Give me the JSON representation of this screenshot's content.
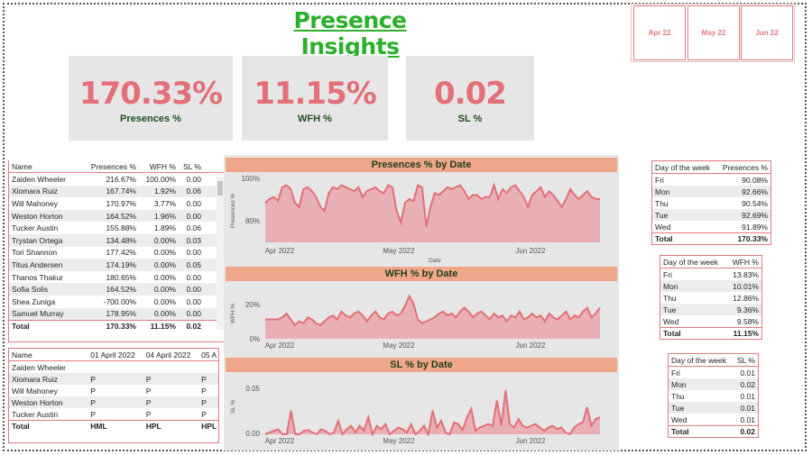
{
  "header": {
    "title": "Presence Insights"
  },
  "slicers": [
    {
      "label": "Apr 22"
    },
    {
      "label": "May 22"
    },
    {
      "label": "Jun 22"
    }
  ],
  "kpis": [
    {
      "value": "170.33%",
      "label": "Presences %"
    },
    {
      "value": "11.15%",
      "label": "WFH %"
    },
    {
      "value": "0.02",
      "label": "SL %"
    }
  ],
  "employee_table": {
    "columns": [
      "Name",
      "Presences %",
      "WFH %",
      "SL %"
    ],
    "rows": [
      [
        "Zaiden Wheeler",
        "216.67%",
        "100.00%",
        "0.00"
      ],
      [
        "Xiomara Ruiz",
        "167.74%",
        "1.92%",
        "0.06"
      ],
      [
        "Will Mahoney",
        "170.97%",
        "3.77%",
        "0.00"
      ],
      [
        "Weston Horton",
        "164.52%",
        "1.96%",
        "0.00"
      ],
      [
        "Tucker Austin",
        "155.88%",
        "1.89%",
        "0.06"
      ],
      [
        "Trystan Ortega",
        "134.48%",
        "0.00%",
        "0.03"
      ],
      [
        "Tori Shannon",
        "177.42%",
        "0.00%",
        "0.00"
      ],
      [
        "Titus Andersen",
        "174.19%",
        "0.00%",
        "0.05"
      ],
      [
        "Thanos Thakur",
        "180.65%",
        "0.00%",
        "0.00"
      ],
      [
        "Sofia Solis",
        "164.52%",
        "0.00%",
        "0.00"
      ],
      [
        "Shea Zuniga",
        "-700.00%",
        "0.00%",
        "0.00"
      ],
      [
        "Samuel Murray",
        "178.95%",
        "0.00%",
        "0.00"
      ]
    ],
    "total": [
      "Total",
      "170.33%",
      "11.15%",
      "0.02"
    ]
  },
  "attendance_table": {
    "columns": [
      "Name",
      "01 April 2022",
      "04 April 2022",
      "05 A"
    ],
    "rows": [
      [
        "Zaiden Wheeler",
        "",
        "",
        ""
      ],
      [
        "Xiomara Ruiz",
        "P",
        "P",
        "P"
      ],
      [
        "Will Mahoney",
        "P",
        "P",
        "P"
      ],
      [
        "Weston Horton",
        "P",
        "P",
        "P"
      ],
      [
        "Tucker Austin",
        "P",
        "P",
        "P"
      ]
    ],
    "total": [
      "Total",
      "HML",
      "HPL",
      "HPL"
    ]
  },
  "dow_presences": {
    "columns": [
      "Day of the week",
      "Presences %"
    ],
    "rows": [
      [
        "Fri",
        "90.08%"
      ],
      [
        "Mon",
        "92.66%"
      ],
      [
        "Thu",
        "90.54%"
      ],
      [
        "Tue",
        "92.69%"
      ],
      [
        "Wed",
        "91.89%"
      ]
    ],
    "total": [
      "Total",
      "170.33%"
    ]
  },
  "dow_wfh": {
    "columns": [
      "Day of the week",
      "WFH %"
    ],
    "rows": [
      [
        "Fri",
        "13.83%"
      ],
      [
        "Mon",
        "10.01%"
      ],
      [
        "Thu",
        "12.86%"
      ],
      [
        "Tue",
        "9.36%"
      ],
      [
        "Wed",
        "9.58%"
      ]
    ],
    "total": [
      "Total",
      "11.15%"
    ]
  },
  "dow_sl": {
    "columns": [
      "Day of the week",
      "SL %"
    ],
    "rows": [
      [
        "Fri",
        "0.01"
      ],
      [
        "Mon",
        "0.02"
      ],
      [
        "Thu",
        "0.01"
      ],
      [
        "Tue",
        "0.01"
      ],
      [
        "Wed",
        "0.01"
      ]
    ],
    "total": [
      "Total",
      "0.02"
    ]
  },
  "colors": {
    "accent": "#e46f78",
    "title_green": "#2ab02a",
    "chart_header": "#f0a688",
    "area_fill": "#e8a6aa"
  },
  "chart_data": [
    {
      "type": "area",
      "title": "Presences % by Date",
      "xlabel": "Date",
      "ylabel": "Presences %",
      "x_ticks": [
        "Apr 2022",
        "May 2022",
        "Jun 2022"
      ],
      "y_ticks": [
        "100%",
        "80%"
      ],
      "ylim": [
        70,
        102
      ],
      "values": [
        90,
        92,
        93,
        91,
        98,
        99,
        97,
        90,
        88,
        97,
        98,
        96,
        93,
        88,
        86,
        95,
        98,
        97,
        99,
        98,
        97,
        96,
        98,
        93,
        96,
        97,
        98,
        96,
        95,
        99,
        98,
        86,
        80,
        90,
        92,
        91,
        99,
        98,
        78,
        88,
        95,
        94,
        96,
        98,
        97,
        98,
        99,
        96,
        92,
        94,
        94,
        92,
        93,
        93,
        99,
        92,
        97,
        95,
        98,
        99,
        96,
        93,
        88,
        94,
        96,
        98,
        93,
        96,
        94,
        91,
        88,
        92,
        97,
        94,
        92,
        94,
        96,
        93,
        92,
        92
      ]
    },
    {
      "type": "area",
      "title": "WFH % by Date",
      "ylabel": "WFH %",
      "x_ticks": [
        "Apr 2022",
        "May 2022",
        "Jun 2022"
      ],
      "y_ticks": [
        "20%",
        "0%"
      ],
      "ylim": [
        0,
        26
      ],
      "values": [
        10,
        10,
        10,
        10,
        11,
        13,
        10,
        7,
        9,
        8,
        11,
        10,
        8,
        7,
        9,
        11,
        12,
        10,
        14,
        12,
        11,
        13,
        14,
        12,
        9,
        12,
        14,
        11,
        10,
        13,
        14,
        12,
        13,
        17,
        22,
        18,
        10,
        8,
        9,
        10,
        11,
        13,
        14,
        12,
        13,
        11,
        14,
        16,
        14,
        11,
        13,
        14,
        12,
        10,
        13,
        11,
        12,
        9,
        12,
        11,
        14,
        10,
        11,
        13,
        11,
        12,
        9,
        13,
        11,
        10,
        12,
        14,
        10,
        12,
        11,
        14,
        16,
        11,
        13,
        16
      ]
    },
    {
      "type": "area",
      "title": "SL % by Date",
      "ylabel": "SL %",
      "x_ticks": [
        "Apr 2022",
        "May 2022",
        "Jun 2022"
      ],
      "y_ticks": [
        "0.05",
        "0.00"
      ],
      "ylim": [
        0,
        0.065
      ],
      "values": [
        0,
        0.002,
        0.004,
        0.006,
        0,
        0,
        0.028,
        0,
        0,
        0.004,
        0.005,
        0.002,
        0,
        0.006,
        0.004,
        0,
        0.002,
        0.016,
        0,
        0.006,
        0.01,
        0.002,
        0.01,
        0.004,
        0.02,
        0,
        0.01,
        0.006,
        0.012,
        0,
        0.004,
        0.008,
        0.006,
        0.002,
        0.012,
        0,
        0.004,
        0.01,
        0,
        0.028,
        0.008,
        0.016,
        0.002,
        0,
        0.014,
        0.012,
        0.005,
        0.02,
        0.03,
        0.004,
        0.008,
        0.01,
        0.012,
        0.01,
        0.04,
        0.01,
        0.052,
        0.012,
        0.008,
        0.018,
        0.01,
        0.008,
        0.01,
        0.012,
        0.008,
        0.004,
        0.008,
        0.01,
        0.006,
        0.008,
        0.002,
        0,
        0.008,
        0.012,
        0.014,
        0.032,
        0.01,
        0.018,
        0.02
      ]
    }
  ]
}
